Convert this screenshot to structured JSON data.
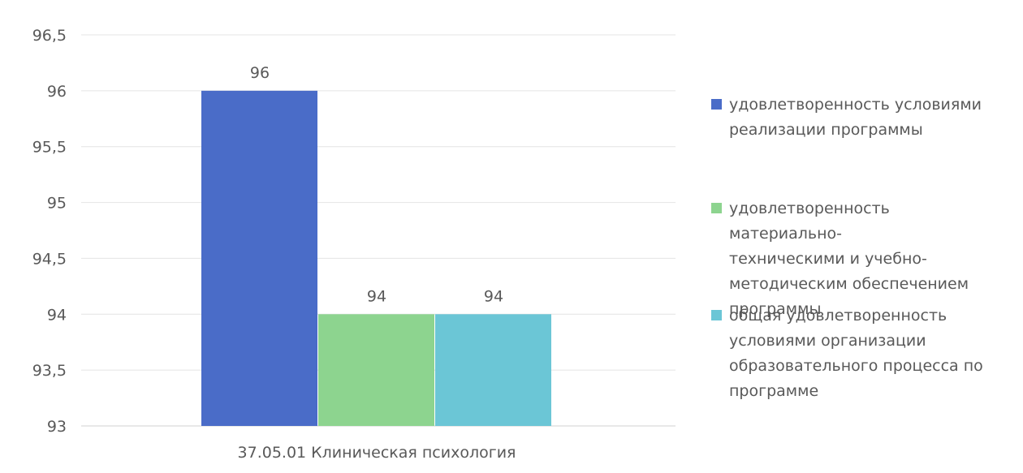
{
  "chart_data": {
    "type": "bar",
    "categories": [
      "37.05.01 Клиническая психология"
    ],
    "series": [
      {
        "name": "удовлетворенность условиями реализации программы",
        "values": [
          96
        ],
        "color": "#4a6cc8"
      },
      {
        "name": "удовлетворенность материально-техническими и учебно-методическим обеспечением программы",
        "values": [
          94
        ],
        "color": "#8dd48f"
      },
      {
        "name": "общая удовлетворенность условиями организации образовательного процесса по программе",
        "values": [
          94
        ],
        "color": "#6bc6d6"
      }
    ],
    "data_labels": [
      "96",
      "94",
      "94"
    ],
    "y_ticks": [
      "93",
      "93,5",
      "94",
      "94,5",
      "95",
      "95,5",
      "96",
      "96,5"
    ],
    "ylim": [
      93,
      96.5
    ],
    "title": "",
    "xlabel": "",
    "ylabel": "",
    "grid": true,
    "legend_position": "right"
  },
  "legend": {
    "item_1": [
      "удовлетворенность условиями",
      "реализации программы"
    ],
    "item_2": [
      "удовлетворенность материально-",
      "техническими и учебно-",
      "методическим обеспечением",
      "программы"
    ],
    "item_3": [
      "общая удовлетворенность",
      "условиями организации",
      "образовательного процесса по",
      "программе"
    ]
  }
}
